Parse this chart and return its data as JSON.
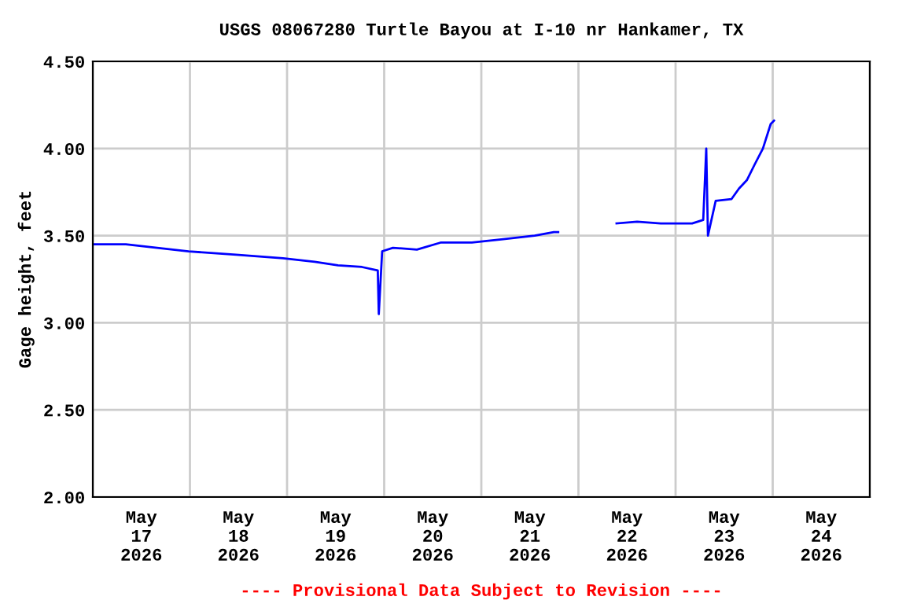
{
  "chart_data": {
    "type": "line",
    "title": "USGS 08067280 Turtle Bayou at I-10 nr Hankamer, TX",
    "ylabel": "Gage height, feet",
    "annotations": [
      "---- Provisional Data Subject to Revision ----"
    ],
    "x": [
      "2026-05-17T00:00",
      "2026-05-17T08:10",
      "2026-05-17T12:00",
      "2026-05-17T23:40",
      "2026-05-18T11:25",
      "2026-05-18T23:00",
      "2026-05-19T06:50",
      "2026-05-19T12:35",
      "2026-05-19T18:30",
      "2026-05-19T22:25",
      "2026-05-19T22:40",
      "2026-05-19T23:30",
      "2026-05-20T02:10",
      "2026-05-20T08:05",
      "2026-05-20T13:55",
      "2026-05-20T21:40",
      "2026-05-21T05:25",
      "2026-05-21T13:10",
      "2026-05-21T17:55",
      "2026-05-21T19:00",
      "2026-05-22T01:00",
      "2026-05-22T09:25",
      "2026-05-22T14:30",
      "2026-05-22T20:20",
      "2026-05-23T04:05",
      "2026-05-23T06:50",
      "2026-05-23T07:35",
      "2026-05-23T08:00",
      "2026-05-23T09:55",
      "2026-05-23T13:50",
      "2026-05-23T15:40",
      "2026-05-23T17:40",
      "2026-05-23T19:35",
      "2026-05-23T21:35",
      "2026-05-23T23:30",
      "2026-05-24T00:20"
    ],
    "series": [
      {
        "color": "#0000ff",
        "values": [
          3.45,
          3.45,
          3.44,
          3.41,
          3.39,
          3.37,
          3.35,
          3.33,
          3.32,
          3.3,
          3.05,
          3.41,
          3.43,
          3.42,
          3.46,
          3.46,
          3.48,
          3.5,
          3.52,
          3.52,
          null,
          3.57,
          3.58,
          3.57,
          3.57,
          3.59,
          4.0,
          3.5,
          3.7,
          3.71,
          3.77,
          3.82,
          3.91,
          4.0,
          4.14,
          4.16
        ]
      }
    ],
    "xlim": [
      "2026-05-17T00:00",
      "2026-05-25T00:00"
    ],
    "xticks": [
      {
        "value": "2026-05-17T00:00",
        "label": null
      },
      {
        "value": "2026-05-17T12:00",
        "label": "May\n17\n2026"
      },
      {
        "value": "2026-05-18T00:00",
        "label": null
      },
      {
        "value": "2026-05-18T12:00",
        "label": "May\n18\n2026"
      },
      {
        "value": "2026-05-19T00:00",
        "label": null
      },
      {
        "value": "2026-05-19T12:00",
        "label": "May\n19\n2026"
      },
      {
        "value": "2026-05-20T00:00",
        "label": null
      },
      {
        "value": "2026-05-20T12:00",
        "label": "May\n20\n2026"
      },
      {
        "value": "2026-05-21T00:00",
        "label": null
      },
      {
        "value": "2026-05-21T12:00",
        "label": "May\n21\n2026"
      },
      {
        "value": "2026-05-22T00:00",
        "label": null
      },
      {
        "value": "2026-05-22T12:00",
        "label": "May\n22\n2026"
      },
      {
        "value": "2026-05-23T00:00",
        "label": null
      },
      {
        "value": "2026-05-23T12:00",
        "label": "May\n23\n2026"
      },
      {
        "value": "2026-05-24T00:00",
        "label": null
      },
      {
        "value": "2026-05-24T12:00",
        "label": "May\n24\n2026"
      },
      {
        "value": "2026-05-25T00:00",
        "label": null
      }
    ],
    "ylim": [
      2.0,
      4.5
    ],
    "yticks": [
      {
        "value": 2.0,
        "label": "2.00"
      },
      {
        "value": 2.5,
        "label": "2.50"
      },
      {
        "value": 3.0,
        "label": "3.00"
      },
      {
        "value": 3.5,
        "label": "3.50"
      },
      {
        "value": 4.0,
        "label": "4.00"
      },
      {
        "value": 4.5,
        "label": "4.50"
      }
    ],
    "grid": true,
    "line_style": "solid"
  }
}
